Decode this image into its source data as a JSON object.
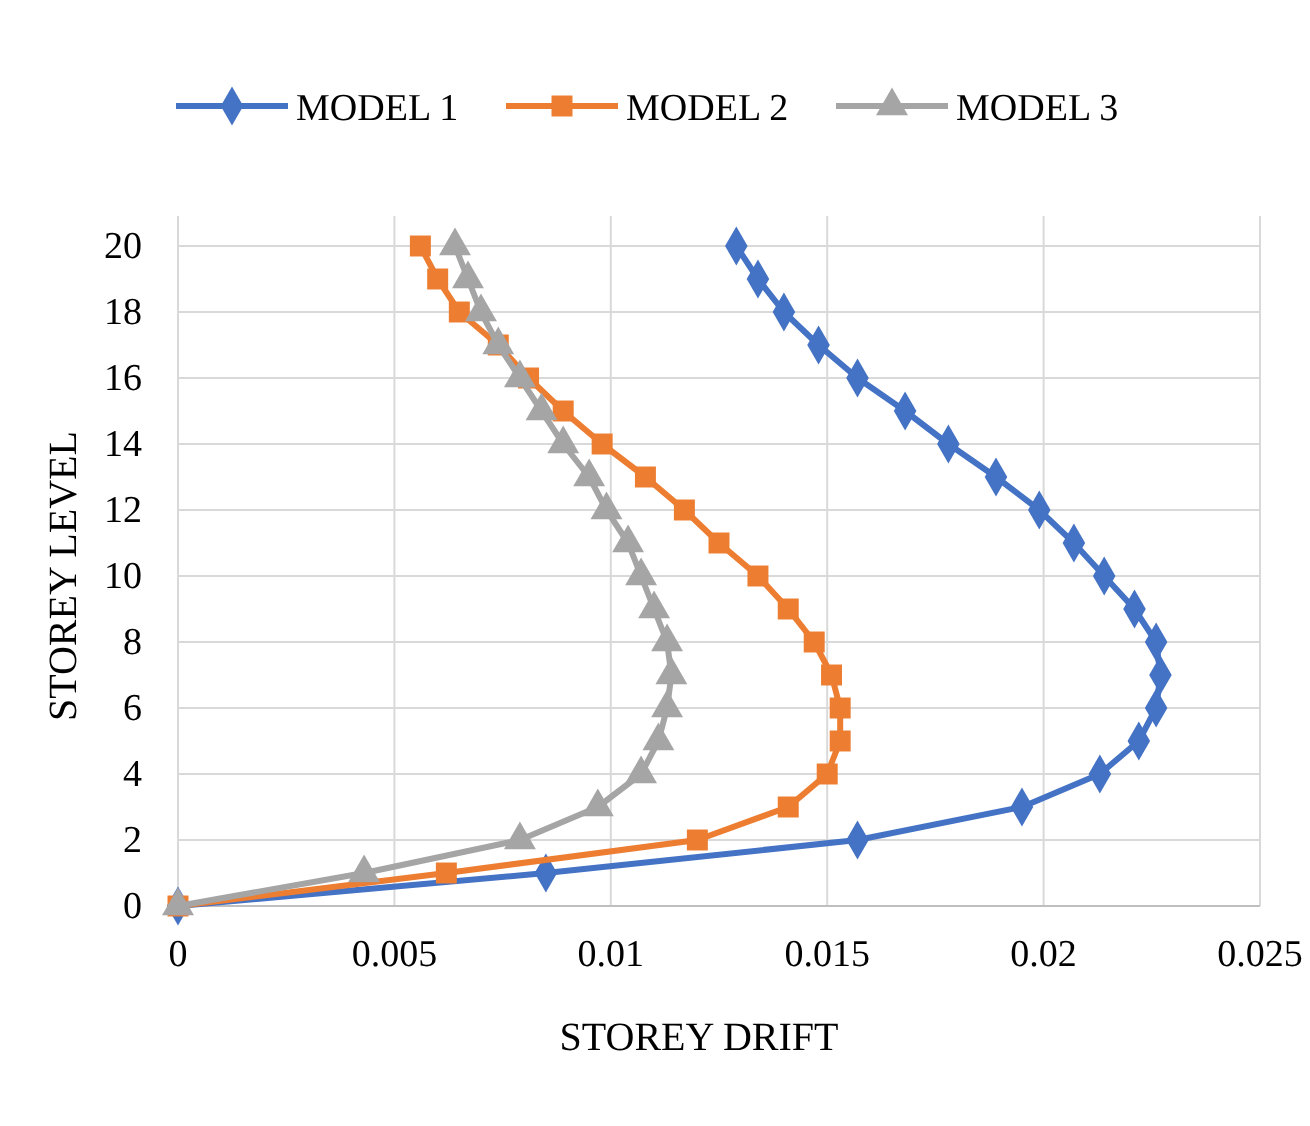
{
  "chart_data": {
    "type": "line",
    "xlabel": "STOREY DRIFT",
    "ylabel": "STOREY LEVEL",
    "xlim": [
      0,
      0.025
    ],
    "xticks": [
      0,
      0.005,
      0.01,
      0.015,
      0.02,
      0.025
    ],
    "ylim": [
      0,
      20
    ],
    "yticks": [
      0,
      2,
      4,
      6,
      8,
      10,
      12,
      14,
      16,
      18,
      20
    ],
    "grid": true,
    "legend": "top",
    "line_style": "solid",
    "series": [
      {
        "name": "MODEL 1",
        "color": "#4472c4",
        "marker": "diamond",
        "x": [
          0,
          0.0085,
          0.0157,
          0.0195,
          0.0213,
          0.0222,
          0.0226,
          0.0227,
          0.0226,
          0.0221,
          0.0214,
          0.0207,
          0.0199,
          0.0189,
          0.0178,
          0.0168,
          0.0157,
          0.0148,
          0.014,
          0.0134,
          0.0129
        ],
        "values": [
          0,
          1,
          2,
          3,
          4,
          5,
          6,
          7,
          8,
          9,
          10,
          11,
          12,
          13,
          14,
          15,
          16,
          17,
          18,
          19,
          20
        ]
      },
      {
        "name": "MODEL 2",
        "color": "#ed7d31",
        "marker": "square",
        "x": [
          0,
          0.0062,
          0.012,
          0.0141,
          0.015,
          0.0153,
          0.0153,
          0.0151,
          0.0147,
          0.0141,
          0.0134,
          0.0125,
          0.0117,
          0.0108,
          0.0098,
          0.0089,
          0.0081,
          0.0074,
          0.0065,
          0.006,
          0.0056
        ],
        "values": [
          0,
          1,
          2,
          3,
          4,
          5,
          6,
          7,
          8,
          9,
          10,
          11,
          12,
          13,
          14,
          15,
          16,
          17,
          18,
          19,
          20
        ]
      },
      {
        "name": "MODEL 3",
        "color": "#a5a5a5",
        "marker": "triangle",
        "x": [
          0,
          0.0043,
          0.0079,
          0.0097,
          0.0107,
          0.0111,
          0.0113,
          0.0114,
          0.0113,
          0.011,
          0.0107,
          0.0104,
          0.0099,
          0.0095,
          0.0089,
          0.0084,
          0.0079,
          0.0074,
          0.007,
          0.0067,
          0.0064
        ],
        "values": [
          0,
          1,
          2,
          3,
          4,
          5,
          6,
          7,
          8,
          9,
          10,
          11,
          12,
          13,
          14,
          15,
          16,
          17,
          18,
          19,
          20
        ]
      }
    ]
  }
}
